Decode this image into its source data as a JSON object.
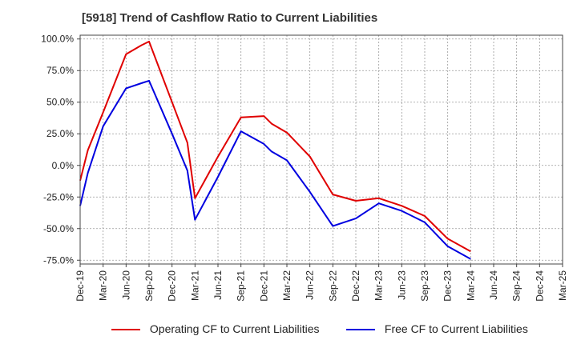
{
  "chart_data": {
    "type": "line",
    "title": "[5918]  Trend of Cashflow Ratio to Current Liabilities",
    "xlabel": "",
    "ylabel": "",
    "ylim": [
      -78,
      103
    ],
    "yticks": [
      "100.0%",
      "75.0%",
      "50.0%",
      "25.0%",
      "0.0%",
      "-25.0%",
      "-50.0%",
      "-75.0%"
    ],
    "ytick_values": [
      100,
      75,
      50,
      25,
      0,
      -25,
      -50,
      -75
    ],
    "xticks": [
      "Dec-19",
      "Mar-20",
      "Jun-20",
      "Sep-20",
      "Dec-20",
      "Mar-21",
      "Jun-21",
      "Sep-21",
      "Dec-21",
      "Mar-22",
      "Jun-22",
      "Sep-22",
      "Dec-22",
      "Mar-23",
      "Jun-23",
      "Sep-23",
      "Dec-23",
      "Mar-24",
      "Jun-24",
      "Sep-24",
      "Dec-24",
      "Mar-25"
    ],
    "grid": true,
    "legend_position": "bottom",
    "series": [
      {
        "name": "Operating CF to Current Liabilities",
        "color": "#e00000",
        "points": [
          [
            "Dec-19",
            -12
          ],
          [
            "Jan-20",
            12
          ],
          [
            "Mar-20",
            42
          ],
          [
            "Jun-20",
            88
          ],
          [
            "Aug-20",
            95
          ],
          [
            "Sep-20",
            98
          ],
          [
            "Dec-20",
            50
          ],
          [
            "Feb-21",
            18
          ],
          [
            "Mar-21",
            -26
          ],
          [
            "Jun-21",
            7
          ],
          [
            "Sep-21",
            38
          ],
          [
            "Dec-21",
            39
          ],
          [
            "Jan-22",
            33
          ],
          [
            "Mar-22",
            26
          ],
          [
            "Jun-22",
            7
          ],
          [
            "Sep-22",
            -23
          ],
          [
            "Dec-22",
            -28
          ],
          [
            "Mar-23",
            -26
          ],
          [
            "Jun-23",
            -32
          ],
          [
            "Sep-23",
            -40
          ],
          [
            "Dec-23",
            -58
          ],
          [
            "Mar-24",
            -68
          ]
        ]
      },
      {
        "name": "Free CF to Current Liabilities",
        "color": "#0000e0",
        "points": [
          [
            "Dec-19",
            -32
          ],
          [
            "Jan-20",
            -6
          ],
          [
            "Mar-20",
            31
          ],
          [
            "Jun-20",
            61
          ],
          [
            "Aug-20",
            65
          ],
          [
            "Sep-20",
            67
          ],
          [
            "Dec-20",
            25
          ],
          [
            "Feb-21",
            -4
          ],
          [
            "Mar-21",
            -43
          ],
          [
            "Jun-21",
            -9
          ],
          [
            "Sep-21",
            27
          ],
          [
            "Dec-21",
            17
          ],
          [
            "Jan-22",
            11
          ],
          [
            "Mar-22",
            4
          ],
          [
            "Jun-22",
            -21
          ],
          [
            "Sep-22",
            -48
          ],
          [
            "Dec-22",
            -42
          ],
          [
            "Mar-23",
            -30
          ],
          [
            "Jun-23",
            -36
          ],
          [
            "Sep-23",
            -45
          ],
          [
            "Dec-23",
            -64
          ],
          [
            "Mar-24",
            -74
          ]
        ]
      }
    ]
  }
}
